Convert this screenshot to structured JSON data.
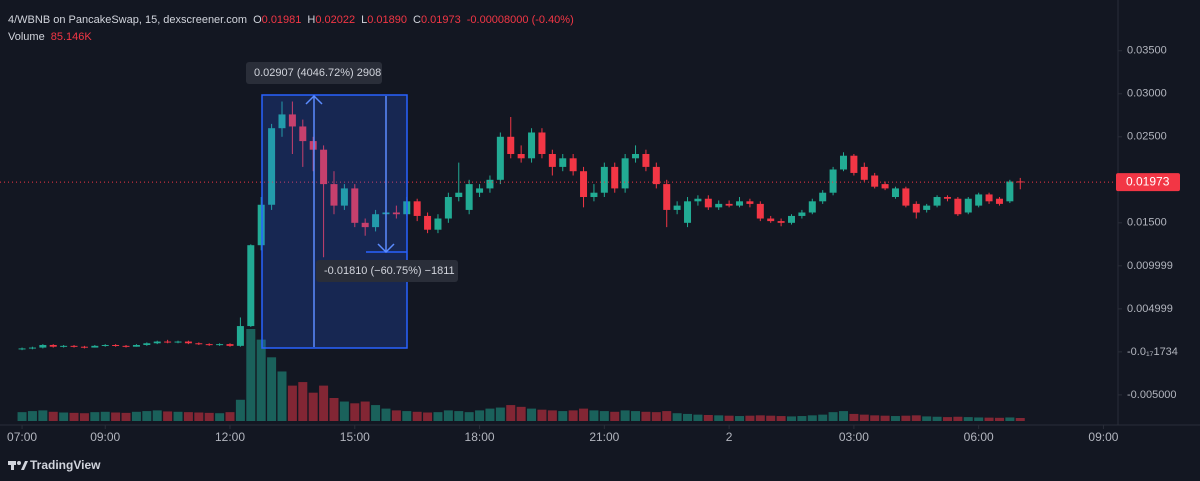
{
  "chart_data": {
    "type": "candlestick",
    "header": {
      "symbol": "4/WBNB on PancakeSwap, 15, dexscreener.com",
      "o_label": "O",
      "o_value": "0.01981",
      "h_label": "H",
      "h_value": "0.02022",
      "l_label": "L",
      "l_value": "0.01890",
      "c_label": "C",
      "c_value": "0.01973",
      "change": "-0.00008000 (-0.40%)",
      "volume_label": "Volume",
      "volume_value": "85.146K"
    },
    "x": [
      0,
      0.25,
      0.5,
      0.75,
      1,
      1.25,
      1.5,
      1.75,
      2,
      2.25,
      2.5,
      2.75,
      3,
      3.25,
      3.5,
      3.75,
      4,
      4.25,
      4.5,
      4.75,
      5,
      5.25,
      5.5,
      5.75,
      6,
      6.25,
      6.5,
      6.75,
      7,
      7.25,
      7.5,
      7.75,
      8,
      8.25,
      8.5,
      8.75,
      9,
      9.25,
      9.5,
      9.75,
      10,
      10.25,
      10.5,
      10.75,
      11,
      11.25,
      11.5,
      11.75,
      12,
      12.25,
      12.5,
      12.75,
      13,
      13.25,
      13.5,
      13.75,
      14,
      14.25,
      14.5,
      14.75,
      15,
      15.25,
      15.5,
      15.75,
      16,
      16.25,
      16.5,
      16.75,
      17,
      17.25,
      17.5,
      17.75,
      18,
      18.25,
      18.5,
      18.75,
      19,
      19.25,
      19.5,
      19.75,
      20,
      20.25,
      20.5,
      20.75,
      21,
      21.25,
      21.5,
      21.75,
      22,
      22.25,
      22.5,
      22.75,
      23,
      23.25,
      23.5,
      23.75,
      24
    ],
    "open": [
      0.0003,
      0.0004,
      0.0005,
      0.0008,
      0.0006,
      0.0007,
      0.0006,
      0.0005,
      0.0007,
      0.0008,
      0.0007,
      0.0006,
      0.0008,
      0.001,
      0.0012,
      0.0011,
      0.0012,
      0.001,
      0.0009,
      0.0008,
      0.0009,
      0.0007,
      0.003,
      0.0124,
      0.0171,
      0.026,
      0.0276,
      0.0262,
      0.0245,
      0.0235,
      0.0195,
      0.017,
      0.019,
      0.015,
      0.0145,
      0.016,
      0.0162,
      0.016,
      0.0175,
      0.0158,
      0.0142,
      0.0155,
      0.018,
      0.0165,
      0.0185,
      0.019,
      0.02,
      0.025,
      0.023,
      0.0225,
      0.0255,
      0.023,
      0.0215,
      0.0225,
      0.021,
      0.018,
      0.0185,
      0.0215,
      0.019,
      0.0225,
      0.023,
      0.0215,
      0.0195,
      0.0165,
      0.015,
      0.0175,
      0.0178,
      0.0168,
      0.0172,
      0.017,
      0.0175,
      0.0172,
      0.0155,
      0.0152,
      0.015,
      0.0158,
      0.0162,
      0.0175,
      0.0185,
      0.0212,
      0.0228,
      0.0215,
      0.0205,
      0.0195,
      0.018,
      0.019,
      0.0172,
      0.0165,
      0.017,
      0.018,
      0.0178,
      0.0162,
      0.017,
      0.0183,
      0.0178,
      0.0175,
      0.01981
    ],
    "high": [
      0.0005,
      0.0006,
      0.0009,
      0.0009,
      0.0008,
      0.0008,
      0.0007,
      0.0008,
      0.0009,
      0.0009,
      0.0008,
      0.0009,
      0.0011,
      0.0013,
      0.0014,
      0.0013,
      0.0013,
      0.0011,
      0.001,
      0.001,
      0.001,
      0.004,
      0.0125,
      0.018,
      0.0265,
      0.0291,
      0.0291,
      0.027,
      0.025,
      0.024,
      0.021,
      0.0195,
      0.0195,
      0.0155,
      0.0165,
      0.017,
      0.017,
      0.018,
      0.0178,
      0.0162,
      0.016,
      0.0185,
      0.022,
      0.02,
      0.0195,
      0.0205,
      0.0255,
      0.0273,
      0.024,
      0.026,
      0.026,
      0.0235,
      0.023,
      0.023,
      0.0215,
      0.0195,
      0.022,
      0.022,
      0.023,
      0.024,
      0.0235,
      0.022,
      0.02,
      0.0175,
      0.018,
      0.0182,
      0.0182,
      0.0176,
      0.0176,
      0.018,
      0.0178,
      0.0175,
      0.0158,
      0.0155,
      0.016,
      0.0165,
      0.0178,
      0.0188,
      0.0215,
      0.0232,
      0.023,
      0.022,
      0.0208,
      0.0198,
      0.0192,
      0.0192,
      0.0175,
      0.0172,
      0.0182,
      0.0182,
      0.018,
      0.018,
      0.0185,
      0.0185,
      0.018,
      0.02,
      0.02022
    ],
    "low": [
      0.0002,
      0.0003,
      0.0004,
      0.0005,
      0.0005,
      0.0005,
      0.0004,
      0.0005,
      0.0006,
      0.0006,
      0.0005,
      0.0006,
      0.0007,
      0.0009,
      0.001,
      0.001,
      0.0009,
      0.0008,
      0.0007,
      0.0007,
      0.0006,
      0.0006,
      0.0029,
      0.0118,
      0.0165,
      0.025,
      0.023,
      0.0215,
      0.021,
      0.011,
      0.016,
      0.0165,
      0.0145,
      0.0135,
      0.014,
      0.0155,
      0.0155,
      0.0158,
      0.0152,
      0.0138,
      0.0138,
      0.015,
      0.0175,
      0.016,
      0.018,
      0.0185,
      0.0195,
      0.0225,
      0.022,
      0.022,
      0.0225,
      0.0205,
      0.021,
      0.0205,
      0.0168,
      0.0175,
      0.018,
      0.0185,
      0.0185,
      0.022,
      0.021,
      0.019,
      0.0145,
      0.016,
      0.0145,
      0.017,
      0.0165,
      0.0165,
      0.0168,
      0.0168,
      0.0168,
      0.0152,
      0.015,
      0.0146,
      0.0148,
      0.0155,
      0.016,
      0.0172,
      0.0182,
      0.021,
      0.0205,
      0.0198,
      0.019,
      0.0188,
      0.0178,
      0.0168,
      0.0155,
      0.0162,
      0.0168,
      0.0175,
      0.0158,
      0.016,
      0.0168,
      0.0172,
      0.017,
      0.0173,
      0.0189
    ],
    "close": [
      0.0004,
      0.0005,
      0.0008,
      0.0006,
      0.0007,
      0.0006,
      0.0005,
      0.0007,
      0.0008,
      0.0007,
      0.0006,
      0.0008,
      0.001,
      0.0012,
      0.0011,
      0.0012,
      0.001,
      0.0009,
      0.0008,
      0.0009,
      0.0007,
      0.003,
      0.0124,
      0.0171,
      0.026,
      0.0276,
      0.0262,
      0.0245,
      0.0235,
      0.0195,
      0.017,
      0.019,
      0.015,
      0.0145,
      0.016,
      0.0162,
      0.016,
      0.0175,
      0.0158,
      0.0142,
      0.0155,
      0.018,
      0.0185,
      0.0195,
      0.019,
      0.02,
      0.025,
      0.023,
      0.0225,
      0.0255,
      0.023,
      0.0215,
      0.0225,
      0.021,
      0.018,
      0.0185,
      0.0215,
      0.019,
      0.0225,
      0.023,
      0.0215,
      0.0195,
      0.0165,
      0.017,
      0.0175,
      0.0178,
      0.0168,
      0.0172,
      0.017,
      0.0175,
      0.0172,
      0.0155,
      0.0152,
      0.015,
      0.0158,
      0.0162,
      0.0175,
      0.0185,
      0.0212,
      0.0228,
      0.0208,
      0.02,
      0.0192,
      0.019,
      0.019,
      0.017,
      0.0162,
      0.017,
      0.018,
      0.0178,
      0.016,
      0.0178,
      0.0183,
      0.0175,
      0.0172,
      0.0198,
      0.01973
    ],
    "volume": [
      250,
      280,
      300,
      260,
      240,
      230,
      220,
      250,
      260,
      240,
      230,
      260,
      280,
      300,
      270,
      260,
      250,
      240,
      230,
      220,
      250,
      600,
      2600,
      2300,
      1800,
      1400,
      1000,
      1100,
      800,
      1000,
      650,
      550,
      500,
      550,
      450,
      350,
      300,
      280,
      260,
      240,
      250,
      300,
      280,
      250,
      300,
      350,
      380,
      450,
      400,
      350,
      320,
      300,
      280,
      300,
      350,
      300,
      280,
      260,
      300,
      280,
      260,
      250,
      280,
      220,
      200,
      180,
      170,
      160,
      150,
      140,
      150,
      160,
      150,
      140,
      130,
      140,
      160,
      180,
      250,
      280,
      200,
      180,
      160,
      150,
      140,
      150,
      160,
      130,
      120,
      110,
      120,
      110,
      100,
      95,
      90,
      100,
      85.146
    ],
    "up_color": "#22ab94",
    "down_color": "#f23645",
    "last_price": 0.01973,
    "xlim": [
      -0.53,
      26.35
    ],
    "xticks": [
      {
        "value": 0,
        "label": "07:00"
      },
      {
        "value": 2,
        "label": "09:00"
      },
      {
        "value": 5,
        "label": "12:00"
      },
      {
        "value": 8,
        "label": "15:00"
      },
      {
        "value": 11,
        "label": "18:00"
      },
      {
        "value": 14,
        "label": "21:00"
      },
      {
        "value": 17,
        "label": "2"
      },
      {
        "value": 20,
        "label": "03:00"
      },
      {
        "value": 23,
        "label": "06:00"
      },
      {
        "value": 26,
        "label": "09:00"
      }
    ],
    "ylim": [
      -0.0085,
      0.0409
    ],
    "yticks": [
      {
        "value": 0.035,
        "label": "0.03500"
      },
      {
        "value": 0.03,
        "label": "0.03000"
      },
      {
        "value": 0.025,
        "label": "0.02500"
      },
      {
        "value": 0.015,
        "label": "0.01500"
      },
      0.009999,
      0.004999,
      {
        "value": -1.734e-18,
        "label": "-0.0₁₇1734"
      },
      {
        "value": -0.005,
        "label": "-0.005000"
      }
    ],
    "annotations": [
      "0.02907 (4046.72%) 2908",
      "-0.01810 (−60.75%) −1811"
    ],
    "footer": "TradingView"
  }
}
